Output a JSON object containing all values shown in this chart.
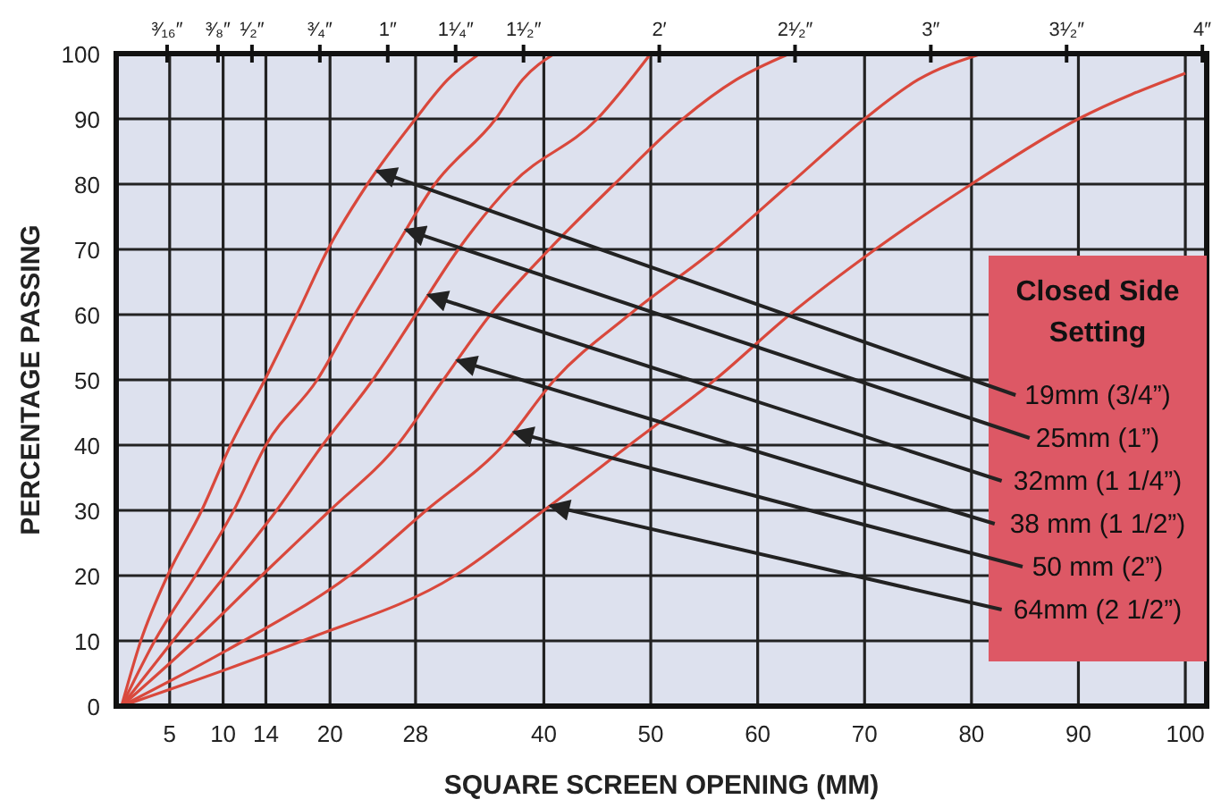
{
  "chart_data": {
    "type": "line",
    "xlabel": "SQUARE SCREEN OPENING (MM)",
    "ylabel": "PERCENTAGE PASSING",
    "xlim": [
      0,
      102
    ],
    "ylim": [
      0,
      100
    ],
    "xticks": [
      5,
      10,
      14,
      20,
      28,
      40,
      50,
      60,
      70,
      80,
      90,
      100
    ],
    "yticks": [
      0,
      10,
      20,
      30,
      40,
      50,
      60,
      70,
      80,
      90,
      100
    ],
    "x2lim": [
      0,
      4.016
    ],
    "x2ticks": [
      {
        "value": 0.1875,
        "label": "³⁄₁₆″"
      },
      {
        "value": 0.375,
        "label": "³⁄₈″"
      },
      {
        "value": 0.5,
        "label": "¹⁄₂″"
      },
      {
        "value": 0.75,
        "label": "³⁄₄″"
      },
      {
        "value": 1,
        "label": "1″"
      },
      {
        "value": 1.25,
        "label": "1¹⁄₄″"
      },
      {
        "value": 1.5,
        "label": "1¹⁄₂″"
      },
      {
        "value": 2,
        "label": "2′"
      },
      {
        "value": 2.5,
        "label": "2¹⁄₂″"
      },
      {
        "value": 3,
        "label": "3″"
      },
      {
        "value": 3.5,
        "label": "3¹⁄₂″"
      },
      {
        "value": 4,
        "label": "4″"
      }
    ],
    "grid": true,
    "marker": "none",
    "line_style": "solid",
    "series": [
      {
        "color": "#d9483c",
        "x": [
          0.5,
          2.3,
          4.8,
          8,
          10.7,
          13.9,
          16.9,
          19.8,
          23.5,
          28,
          31,
          34
        ],
        "values": [
          0,
          10,
          20,
          30,
          40,
          50,
          60,
          70,
          80,
          90,
          96,
          100
        ]
      },
      {
        "color": "#d9483c",
        "x": [
          0.5,
          3.6,
          7.4,
          11,
          14,
          18.8,
          22.3,
          26,
          29.8,
          35.5,
          38,
          41
        ],
        "values": [
          0,
          10,
          20,
          30,
          40,
          50,
          60,
          70,
          80,
          90,
          96,
          100
        ]
      },
      {
        "color": "#d9483c",
        "x": [
          0.5,
          5.3,
          10.2,
          15,
          19.3,
          24,
          28,
          32,
          37,
          45,
          50
        ],
        "values": [
          0,
          10,
          20,
          30,
          40,
          50,
          60,
          70,
          80,
          90,
          100
        ]
      },
      {
        "color": "#d9483c",
        "x": [
          0.5,
          7.3,
          13.6,
          20,
          26.3,
          30.6,
          35,
          40.5,
          46.6,
          53,
          58,
          63
        ],
        "values": [
          0,
          10,
          20,
          30,
          40,
          50,
          60,
          70,
          80,
          90,
          96,
          100
        ]
      },
      {
        "color": "#d9483c",
        "x": [
          0.5,
          11.9,
          21.8,
          29,
          36.2,
          41,
          48,
          56,
          63,
          70,
          75,
          81
        ],
        "values": [
          0,
          10,
          20,
          30,
          40,
          50,
          60,
          70,
          80,
          90,
          96,
          100
        ]
      },
      {
        "color": "#d9483c",
        "x": [
          0.5,
          17.4,
          31.7,
          40,
          48,
          56,
          63,
          71,
          80,
          90,
          100
        ],
        "values": [
          0,
          10,
          20,
          30,
          40,
          50,
          60,
          70,
          80,
          90,
          97
        ]
      }
    ],
    "annotations": [
      "Closed Side Setting",
      {
        "text": "19mm (3/4”)",
        "x": 24.4,
        "y": 82
      },
      {
        "text": "25mm (1”)",
        "x": 27.1,
        "y": 73
      },
      {
        "text": "32mm (1 1/4”)",
        "x": 29.2,
        "y": 63
      },
      {
        "text": "38 mm (1 1/2”)",
        "x": 31.9,
        "y": 53
      },
      {
        "text": "50 mm (2”)",
        "x": 37.2,
        "y": 42
      },
      {
        "text": "64mm (2 1/2”)",
        "x": 40.6,
        "y": 30.7
      }
    ]
  }
}
